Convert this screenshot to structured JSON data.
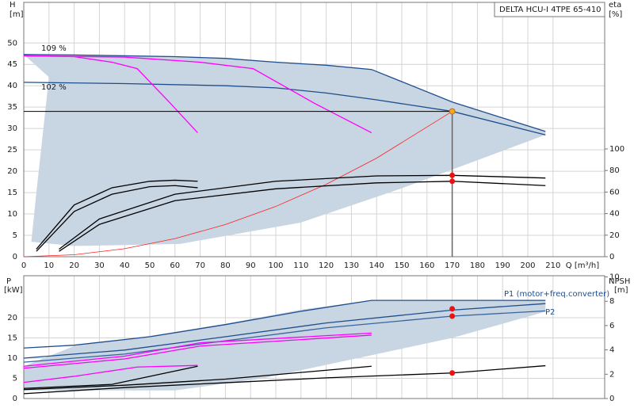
{
  "chart_data": [
    {
      "type": "line",
      "title": "DELTA HCU-I 4TPE 65-410",
      "y_label": "H",
      "y_unit": "[m]",
      "y2_label": "eta",
      "y2_unit": "[%]",
      "x_label": "Q [m³/h]",
      "annotations": [
        "109 %",
        "102 %"
      ],
      "xlim": [
        0,
        230.5
      ],
      "ylim": [
        0,
        59.5
      ],
      "y2lim": [
        0,
        236
      ],
      "xticks": [
        0,
        10,
        20,
        30,
        40,
        50,
        60,
        70,
        80,
        90,
        100,
        110,
        120,
        130,
        140,
        150,
        160,
        170,
        180,
        190,
        200,
        210
      ],
      "yticks": [
        0,
        5,
        10,
        15,
        20,
        25,
        30,
        35,
        40,
        45,
        50
      ],
      "y2ticks": [
        0,
        20,
        40,
        60,
        80,
        100
      ],
      "show_xtick_labels": true,
      "grid": true,
      "area": {
        "color": "#c8d5e2",
        "x": [
          0,
          20,
          40,
          60,
          80,
          100,
          120,
          138,
          170,
          207,
          207,
          150,
          110,
          62,
          20,
          3,
          5,
          10
        ],
        "y": [
          47.3,
          47.2,
          47,
          46.8,
          46.4,
          45.5,
          44.8,
          43.8,
          36.2,
          29.3,
          28.5,
          16,
          8,
          3,
          2.5,
          3.5,
          15,
          42
        ]
      },
      "series": [
        {
          "color": "#1f4e8c",
          "x": [
            0,
            20,
            40,
            60,
            80,
            100,
            120,
            138,
            170,
            207
          ],
          "values": [
            47.3,
            47.2,
            47,
            46.8,
            46.4,
            45.5,
            44.8,
            43.8,
            36.2,
            29.3
          ]
        },
        {
          "color": "#1f4e8c",
          "x": [
            0,
            40,
            80,
            100,
            120,
            140,
            170,
            207
          ],
          "values": [
            40.8,
            40.5,
            40,
            39.5,
            38.3,
            36.7,
            34,
            28.5
          ]
        },
        {
          "color": "#ff00ff",
          "x": [
            0,
            20,
            35,
            45,
            58,
            69
          ],
          "values": [
            47,
            46.8,
            45.5,
            44,
            36,
            29
          ]
        },
        {
          "color": "#ff00ff",
          "x": [
            0,
            40,
            70,
            91,
            115,
            138
          ],
          "values": [
            47,
            46.7,
            45.5,
            44,
            36,
            29
          ]
        },
        {
          "color": "#ff2020",
          "x": [
            0,
            20,
            40,
            60,
            80,
            100,
            120,
            140,
            170
          ],
          "values": [
            0,
            0.47,
            1.88,
            4.24,
            7.53,
            11.76,
            16.94,
            23.05,
            34
          ]
        },
        {
          "color": "#000000",
          "axis": "y2",
          "x": [
            14,
            30,
            60,
            100,
            140,
            170,
            207
          ],
          "values": [
            5,
            30,
            52,
            63,
            68.5,
            70,
            66
          ]
        },
        {
          "color": "#000000",
          "axis": "y2",
          "x": [
            14,
            30,
            60,
            100,
            140,
            170,
            207
          ],
          "values": [
            7,
            35,
            58,
            70,
            75,
            75.5,
            73
          ]
        },
        {
          "color": "#000000",
          "axis": "y2",
          "x": [
            5,
            20,
            35,
            50,
            60,
            69
          ],
          "values": [
            5,
            42,
            58,
            65,
            66,
            64
          ]
        },
        {
          "color": "#000000",
          "axis": "y2",
          "x": [
            5,
            20,
            35,
            50,
            60,
            69
          ],
          "values": [
            7,
            48,
            64,
            70,
            71,
            70
          ]
        }
      ],
      "points": [
        {
          "color": "#f5a623",
          "x": 170,
          "y": 34,
          "duty_lines": true
        },
        {
          "color": "#ee1111",
          "axis": "y2",
          "x": 170,
          "y": 75.5
        },
        {
          "color": "#ee1111",
          "axis": "y2",
          "x": 170,
          "y": 70
        }
      ]
    },
    {
      "type": "line",
      "y_label": "P",
      "y_unit": "[kW]",
      "y2_label": "NPSH",
      "y2_unit": "[m]",
      "annotations": [
        "P1 (motor+freq.converter)",
        "P2"
      ],
      "xlim": [
        0,
        230.5
      ],
      "ylim": [
        0,
        30.4
      ],
      "y2lim": [
        0,
        10.1
      ],
      "xticks": [
        0,
        10,
        20,
        30,
        40,
        50,
        60,
        70,
        80,
        90,
        100,
        110,
        120,
        130,
        140,
        150,
        160,
        170,
        180,
        190,
        200,
        210
      ],
      "yticks": [
        0,
        5,
        10,
        15,
        20
      ],
      "y2ticks": [
        0,
        2,
        4,
        6,
        8,
        10
      ],
      "show_xtick_labels": false,
      "grid": true,
      "area": {
        "color": "#c8d5e2",
        "x": [
          0,
          20,
          50,
          80,
          110,
          138,
          207,
          207,
          170,
          95,
          60,
          20,
          0
        ],
        "y": [
          8,
          13,
          15.5,
          18.5,
          22,
          24.3,
          24.3,
          21.5,
          15,
          5,
          2,
          2,
          2
        ]
      },
      "series": [
        {
          "color": "#1f4e8c",
          "x": [
            0,
            20,
            50,
            80,
            110,
            138,
            207
          ],
          "values": [
            12.5,
            13.2,
            15.3,
            18.3,
            21.6,
            24.3,
            24.3
          ]
        },
        {
          "color": "#1f4e8c",
          "x": [
            0,
            40,
            80,
            120,
            170,
            207
          ],
          "values": [
            10,
            12,
            15.3,
            18.7,
            21.9,
            23.5
          ]
        },
        {
          "color": "#3a64a0",
          "x": [
            0,
            40,
            80,
            120,
            170,
            207
          ],
          "values": [
            9,
            11,
            14.3,
            17.5,
            20.4,
            21.7
          ]
        },
        {
          "color": "#ff00ff",
          "x": [
            0,
            40,
            70,
            138
          ],
          "values": [
            8,
            10.5,
            13.8,
            16.2
          ]
        },
        {
          "color": "#ff00ff",
          "x": [
            0,
            40,
            70,
            138
          ],
          "values": [
            7.5,
            9.8,
            13,
            15.7
          ]
        },
        {
          "color": "#ff00ff",
          "x": [
            0,
            20,
            45,
            69
          ],
          "values": [
            4,
            5.5,
            7.8,
            8.2
          ]
        },
        {
          "color": "#000000",
          "x": [
            0,
            35,
            69
          ],
          "values": [
            2.5,
            3.5,
            8
          ]
        },
        {
          "color": "#000000",
          "x": [
            0,
            40,
            80,
            138
          ],
          "values": [
            2.2,
            3.3,
            4.8,
            8
          ]
        },
        {
          "color": "#000000",
          "axis": "y2",
          "x": [
            0,
            40,
            80,
            120,
            170,
            207
          ],
          "values": [
            0.4,
            0.9,
            1.3,
            1.7,
            2.1,
            2.7
          ]
        }
      ],
      "points": [
        {
          "color": "#ee1111",
          "x": 170,
          "y": 22.2
        },
        {
          "color": "#ee1111",
          "x": 170,
          "y": 20.4
        },
        {
          "color": "#ee1111",
          "axis": "y2",
          "x": 170,
          "y": 2.1
        }
      ]
    }
  ]
}
